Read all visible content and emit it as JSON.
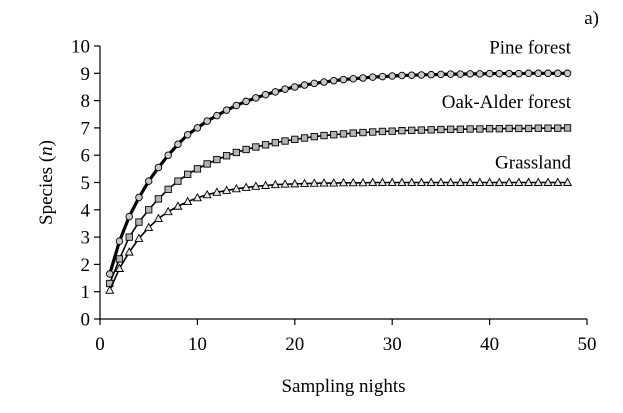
{
  "chart_data": {
    "type": "line",
    "panel_label": "a)",
    "xlabel": "Sampling nights",
    "ylabel_prefix": "Species (",
    "ylabel_var": "n",
    "ylabel_suffix": ")",
    "xlim": [
      0,
      50
    ],
    "ylim": [
      0,
      10
    ],
    "xticks": [
      0,
      10,
      20,
      30,
      40,
      50
    ],
    "yticks": [
      0,
      1,
      2,
      3,
      4,
      5,
      6,
      7,
      8,
      9,
      10
    ],
    "grid": false,
    "legend": "none (series labels placed above curve ends)",
    "x": [
      1,
      2,
      3,
      4,
      5,
      6,
      7,
      8,
      9,
      10,
      11,
      12,
      13,
      14,
      15,
      16,
      17,
      18,
      19,
      20,
      21,
      22,
      23,
      24,
      25,
      26,
      27,
      28,
      29,
      30,
      31,
      32,
      33,
      34,
      35,
      36,
      37,
      38,
      39,
      40,
      41,
      42,
      43,
      44,
      45,
      46,
      47,
      48
    ],
    "series": [
      {
        "name": "Pine forest",
        "marker": "circle",
        "line_color": "#000000",
        "line_weight": "thick",
        "marker_fill": "#c8c8c8",
        "values": [
          1.65,
          2.85,
          3.75,
          4.45,
          5.05,
          5.55,
          6.0,
          6.4,
          6.75,
          7.0,
          7.25,
          7.45,
          7.65,
          7.82,
          7.97,
          8.1,
          8.22,
          8.32,
          8.42,
          8.5,
          8.57,
          8.63,
          8.68,
          8.73,
          8.77,
          8.8,
          8.83,
          8.86,
          8.88,
          8.9,
          8.92,
          8.93,
          8.94,
          8.95,
          8.96,
          8.97,
          8.97,
          8.98,
          8.98,
          8.99,
          8.99,
          8.99,
          8.99,
          9.0,
          9.0,
          9.0,
          9.0,
          9.0
        ]
      },
      {
        "name": "Oak-Alder forest",
        "marker": "square",
        "line_color": "#000000",
        "line_weight": "medium",
        "marker_fill": "#b4b4b4",
        "values": [
          1.3,
          2.2,
          3.0,
          3.55,
          4.0,
          4.4,
          4.75,
          5.05,
          5.3,
          5.5,
          5.68,
          5.84,
          5.98,
          6.1,
          6.21,
          6.3,
          6.38,
          6.46,
          6.52,
          6.58,
          6.63,
          6.68,
          6.72,
          6.75,
          6.78,
          6.81,
          6.83,
          6.85,
          6.87,
          6.88,
          6.9,
          6.91,
          6.92,
          6.93,
          6.94,
          6.95,
          6.95,
          6.96,
          6.96,
          6.97,
          6.97,
          6.98,
          6.98,
          6.98,
          6.99,
          6.99,
          6.99,
          7.0
        ]
      },
      {
        "name": "Grassland",
        "marker": "triangle",
        "line_color": "#000000",
        "line_weight": "medium",
        "marker_fill": "#e6e6e6",
        "values": [
          1.05,
          1.85,
          2.45,
          2.95,
          3.35,
          3.68,
          3.93,
          4.13,
          4.3,
          4.44,
          4.55,
          4.64,
          4.71,
          4.77,
          4.82,
          4.86,
          4.89,
          4.92,
          4.94,
          4.95,
          4.96,
          4.97,
          4.98,
          4.98,
          4.99,
          4.99,
          4.99,
          5.0,
          5.0,
          5.0,
          5.0,
          5.0,
          5.0,
          5.0,
          5.0,
          5.0,
          5.0,
          5.0,
          5.0,
          5.0,
          5.0,
          5.0,
          5.0,
          5.0,
          5.0,
          5.0,
          5.0,
          5.0
        ]
      }
    ]
  }
}
